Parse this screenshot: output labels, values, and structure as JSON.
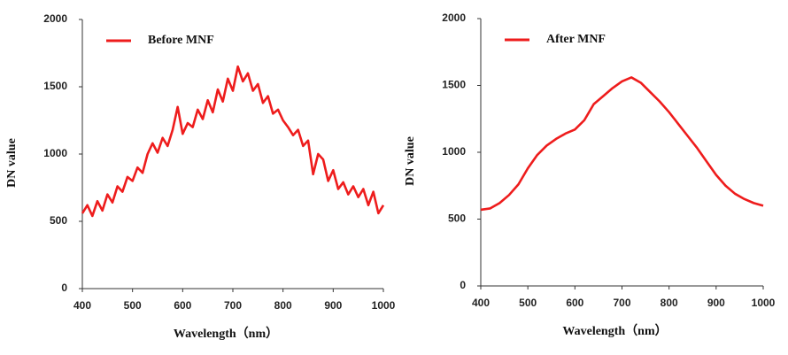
{
  "chart_data": [
    {
      "type": "line",
      "x_label": "Wavelength（nm）",
      "y_label": "DN value",
      "x": [
        400,
        410,
        420,
        430,
        440,
        450,
        460,
        470,
        480,
        490,
        500,
        510,
        520,
        530,
        540,
        550,
        560,
        570,
        580,
        590,
        600,
        610,
        620,
        630,
        640,
        650,
        660,
        670,
        680,
        690,
        700,
        710,
        720,
        730,
        740,
        750,
        760,
        770,
        780,
        790,
        800,
        810,
        820,
        830,
        840,
        850,
        860,
        870,
        880,
        890,
        900,
        910,
        920,
        930,
        940,
        950,
        960,
        970,
        980,
        990,
        1000
      ],
      "series": [
        {
          "name": "Before MNF",
          "color": "#ee1c1c",
          "values": [
            560,
            620,
            540,
            650,
            580,
            700,
            640,
            760,
            720,
            830,
            800,
            900,
            860,
            1000,
            1080,
            1010,
            1120,
            1060,
            1180,
            1350,
            1150,
            1230,
            1200,
            1330,
            1260,
            1400,
            1310,
            1480,
            1390,
            1560,
            1470,
            1650,
            1540,
            1600,
            1470,
            1520,
            1380,
            1430,
            1300,
            1330,
            1250,
            1200,
            1140,
            1180,
            1060,
            1100,
            850,
            1000,
            960,
            800,
            880,
            740,
            790,
            700,
            760,
            680,
            740,
            620,
            720,
            560,
            620
          ]
        }
      ],
      "xlim": [
        400,
        1000
      ],
      "ylim": [
        0,
        2000
      ],
      "xticks": [
        400,
        500,
        600,
        700,
        800,
        900,
        1000
      ],
      "yticks": [
        0,
        500,
        1000,
        1500,
        2000
      ],
      "legend": "upper left"
    },
    {
      "type": "line",
      "x_label": "Wavelength（nm）",
      "y_label": "DN value",
      "x": [
        400,
        420,
        440,
        460,
        480,
        500,
        520,
        540,
        560,
        580,
        600,
        620,
        640,
        660,
        680,
        700,
        720,
        740,
        760,
        780,
        800,
        820,
        840,
        860,
        880,
        900,
        920,
        940,
        960,
        980,
        1000
      ],
      "series": [
        {
          "name": "After MNF",
          "color": "#ee1c1c",
          "values": [
            570,
            580,
            620,
            680,
            760,
            880,
            980,
            1050,
            1100,
            1140,
            1170,
            1240,
            1360,
            1420,
            1480,
            1530,
            1560,
            1520,
            1450,
            1380,
            1300,
            1210,
            1120,
            1030,
            930,
            830,
            750,
            690,
            650,
            620,
            600
          ]
        }
      ],
      "xlim": [
        400,
        1000
      ],
      "ylim": [
        0,
        2000
      ],
      "xticks": [
        400,
        500,
        600,
        700,
        800,
        900,
        1000
      ],
      "yticks": [
        0,
        500,
        1000,
        1500,
        2000
      ],
      "legend": "upper left"
    }
  ]
}
